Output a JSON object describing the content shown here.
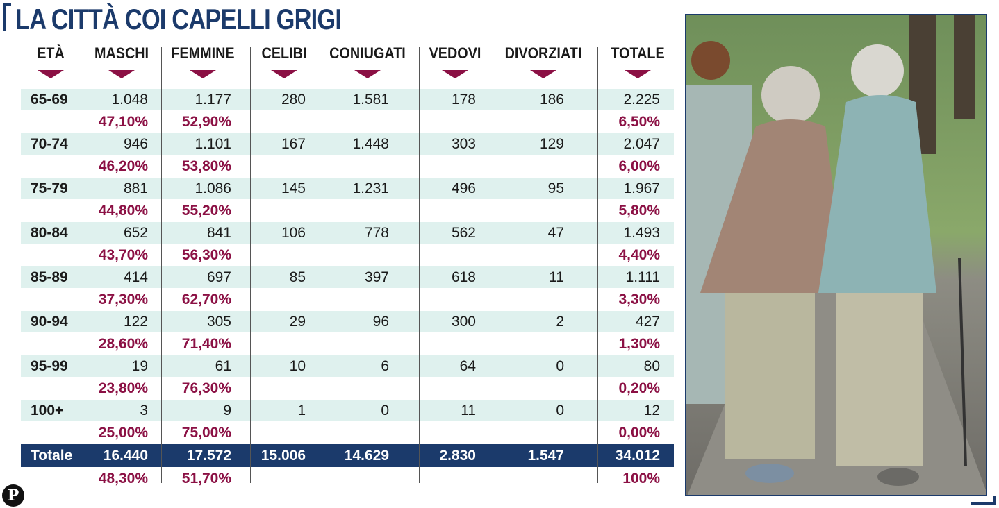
{
  "title": "LA CITTÀ COI CAPELLI GRIGI",
  "logo_text": "P",
  "colors": {
    "navy": "#1b3a6b",
    "accent": "#8b1044",
    "band": "#dff1ee"
  },
  "photo": {
    "icon": "elderly-couple-walking-photo"
  },
  "chart_data": {
    "type": "table",
    "columns": [
      "ETÀ",
      "MASCHI",
      "FEMMINE",
      "CELIBI",
      "CONIUGATI",
      "VEDOVI",
      "DIVORZIATI",
      "TOTALE"
    ],
    "rows": [
      {
        "age": "65-69",
        "values": [
          "1.048",
          "1.177",
          "280",
          "1.581",
          "178",
          "186",
          "2.225"
        ],
        "pct_maschi": "47,10%",
        "pct_femmine": "52,90%",
        "pct_totale": "6,50%"
      },
      {
        "age": "70-74",
        "values": [
          "946",
          "1.101",
          "167",
          "1.448",
          "303",
          "129",
          "2.047"
        ],
        "pct_maschi": "46,20%",
        "pct_femmine": "53,80%",
        "pct_totale": "6,00%"
      },
      {
        "age": "75-79",
        "values": [
          "881",
          "1.086",
          "145",
          "1.231",
          "496",
          "95",
          "1.967"
        ],
        "pct_maschi": "44,80%",
        "pct_femmine": "55,20%",
        "pct_totale": "5,80%"
      },
      {
        "age": "80-84",
        "values": [
          "652",
          "841",
          "106",
          "778",
          "562",
          "47",
          "1.493"
        ],
        "pct_maschi": "43,70%",
        "pct_femmine": "56,30%",
        "pct_totale": "4,40%"
      },
      {
        "age": "85-89",
        "values": [
          "414",
          "697",
          "85",
          "397",
          "618",
          "11",
          "1.111"
        ],
        "pct_maschi": "37,30%",
        "pct_femmine": "62,70%",
        "pct_totale": "3,30%"
      },
      {
        "age": "90-94",
        "values": [
          "122",
          "305",
          "29",
          "96",
          "300",
          "2",
          "427"
        ],
        "pct_maschi": "28,60%",
        "pct_femmine": "71,40%",
        "pct_totale": "1,30%"
      },
      {
        "age": "95-99",
        "values": [
          "19",
          "61",
          "10",
          "6",
          "64",
          "0",
          "80"
        ],
        "pct_maschi": "23,80%",
        "pct_femmine": "76,30%",
        "pct_totale": "0,20%"
      },
      {
        "age": "100+",
        "values": [
          "3",
          "9",
          "1",
          "0",
          "11",
          "0",
          "12"
        ],
        "pct_maschi": "25,00%",
        "pct_femmine": "75,00%",
        "pct_totale": "0,00%"
      }
    ],
    "total": {
      "label": "Totale",
      "values": [
        "16.440",
        "17.572",
        "15.006",
        "14.629",
        "2.830",
        "1.547",
        "34.012"
      ],
      "pct_maschi": "48,30%",
      "pct_femmine": "51,70%",
      "pct_totale": "100%"
    }
  }
}
